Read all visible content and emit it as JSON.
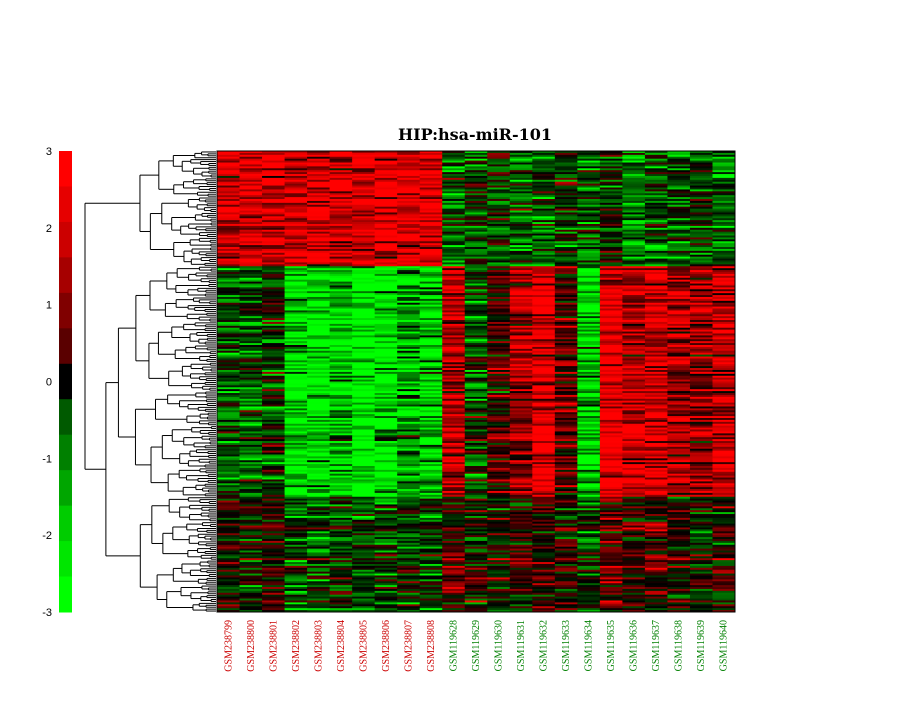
{
  "chart_data": {
    "type": "heatmap",
    "title": "HIP:hsa-miR-101",
    "colorbar": {
      "min": -3,
      "max": 3,
      "ticks": [
        3,
        2,
        1,
        0,
        -1,
        -2,
        -3
      ],
      "colors": [
        "#00ff00",
        "#00e600",
        "#00cc00",
        "#00a600",
        "#008000",
        "#005a00",
        "#000000",
        "#5a0000",
        "#800000",
        "#a60000",
        "#cc0000",
        "#e60000",
        "#ff0000"
      ]
    },
    "columns": [
      {
        "label": "GSM238799",
        "color": "#cc0000"
      },
      {
        "label": "GSM238800",
        "color": "#cc0000"
      },
      {
        "label": "GSM238801",
        "color": "#cc0000"
      },
      {
        "label": "GSM238802",
        "color": "#cc0000"
      },
      {
        "label": "GSM238803",
        "color": "#cc0000"
      },
      {
        "label": "GSM238804",
        "color": "#cc0000"
      },
      {
        "label": "GSM238805",
        "color": "#cc0000"
      },
      {
        "label": "GSM238806",
        "color": "#cc0000"
      },
      {
        "label": "GSM238807",
        "color": "#cc0000"
      },
      {
        "label": "GSM238808",
        "color": "#cc0000"
      },
      {
        "label": "GSM119628",
        "color": "#008000"
      },
      {
        "label": "GSM119629",
        "color": "#008000"
      },
      {
        "label": "GSM119630",
        "color": "#008000"
      },
      {
        "label": "GSM119631",
        "color": "#008000"
      },
      {
        "label": "GSM119632",
        "color": "#008000"
      },
      {
        "label": "GSM119633",
        "color": "#008000"
      },
      {
        "label": "GSM119634",
        "color": "#008000"
      },
      {
        "label": "GSM119635",
        "color": "#008000"
      },
      {
        "label": "GSM119636",
        "color": "#008000"
      },
      {
        "label": "GSM119637",
        "color": "#008000"
      },
      {
        "label": "GSM119638",
        "color": "#008000"
      },
      {
        "label": "GSM119639",
        "color": "#008000"
      },
      {
        "label": "GSM119640",
        "color": "#008000"
      }
    ],
    "row_groups": [
      {
        "rows": 60,
        "profile": [
          2.0,
          2.1,
          2.2,
          2.1,
          2.3,
          2.2,
          2.0,
          2.3,
          2.1,
          2.4,
          -1.0,
          -0.6,
          -0.4,
          -0.8,
          -0.7,
          -0.3,
          -0.9,
          -0.2,
          -1.2,
          -0.8,
          -0.9,
          -0.5,
          -0.9
        ]
      },
      {
        "rows": 120,
        "profile": [
          -0.7,
          -0.9,
          -0.4,
          -2.3,
          -2.3,
          -2.0,
          -2.6,
          -2.3,
          -1.8,
          -2.0,
          1.8,
          -0.6,
          0.6,
          1.6,
          2.2,
          0.8,
          -2.0,
          2.5,
          1.9,
          2.1,
          1.6,
          1.5,
          1.8
        ]
      },
      {
        "rows": 60,
        "profile": [
          0.2,
          0.0,
          0.6,
          -0.6,
          -0.9,
          -0.4,
          -0.6,
          -0.7,
          -0.3,
          -0.5,
          0.6,
          -0.1,
          0.0,
          0.3,
          0.4,
          0.2,
          -0.4,
          0.8,
          0.4,
          0.6,
          0.2,
          -0.1,
          0.3
        ]
      }
    ]
  }
}
